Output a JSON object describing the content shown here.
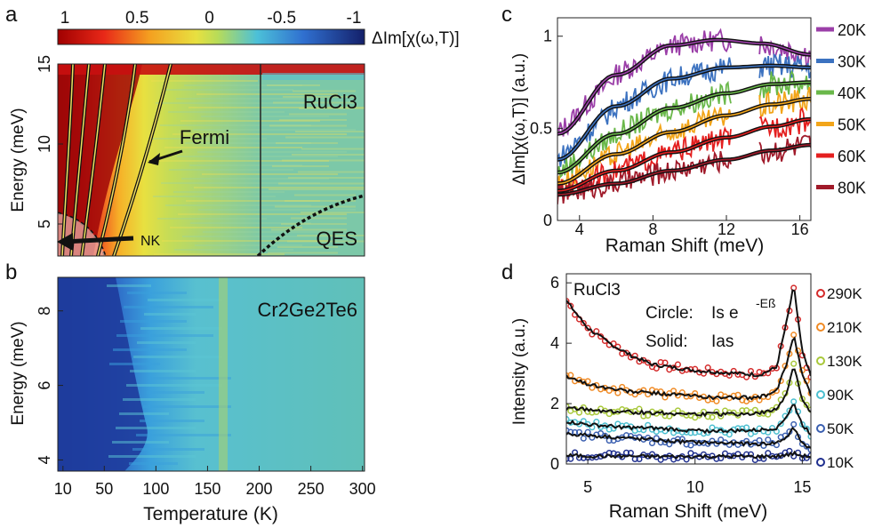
{
  "chart_data": [
    {
      "panel": "a",
      "type": "heatmap",
      "sample": "RuCl3",
      "xlabel": "",
      "ylabel": "Energy (meV)",
      "xlim": [
        5,
        302
      ],
      "ylim": [
        3,
        15
      ],
      "y_ticks": [
        5,
        10,
        15
      ],
      "colorbar": {
        "label": "ΔIm[χ(ω,T)]",
        "ticks": [
          "1",
          "0.5",
          "0",
          "-0.5",
          "-1"
        ],
        "range": [
          1,
          -1
        ]
      },
      "annotations": [
        "Fermi",
        "NK",
        "QES"
      ],
      "colors": {
        "positive": "#b40000",
        "zero": "#c8e04a",
        "negative": "#1e2f8c"
      }
    },
    {
      "panel": "b",
      "type": "heatmap",
      "sample": "Cr2Ge2Te6",
      "xlabel": "Temperature (K)",
      "ylabel": "Energy (meV)",
      "x_ticks": [
        10,
        50,
        100,
        150,
        200,
        250,
        300
      ],
      "xlim": [
        5,
        302
      ],
      "y_ticks": [
        4,
        6,
        8
      ],
      "ylim": [
        3.7,
        8.9
      ]
    },
    {
      "panel": "c",
      "type": "line",
      "xlabel": "Raman Shift (meV)",
      "ylabel": "ΔIm[χ(ω,T)] (a.u.)",
      "x_ticks": [
        4,
        8,
        12,
        16
      ],
      "y_ticks": [
        0,
        0.5,
        1
      ],
      "xlim": [
        2.8,
        16.6
      ],
      "ylim": [
        0,
        1.1
      ],
      "series": [
        {
          "name": "20K",
          "color": "#9b3fa8",
          "fit": {
            "x": [
              2.8,
              6,
              9,
              11.5,
              14,
              16.6
            ],
            "y": [
              0.47,
              0.79,
              0.95,
              0.98,
              0.96,
              0.9
            ]
          }
        },
        {
          "name": "30K",
          "color": "#3c72c0",
          "fit": {
            "x": [
              2.8,
              6,
              9,
              12,
              14.5,
              16.6
            ],
            "y": [
              0.33,
              0.62,
              0.77,
              0.83,
              0.84,
              0.83
            ]
          }
        },
        {
          "name": "40K",
          "color": "#6ab84a",
          "fit": {
            "x": [
              2.8,
              6,
              9,
              12,
              14.5,
              16.6
            ],
            "y": [
              0.26,
              0.47,
              0.61,
              0.69,
              0.74,
              0.75
            ]
          }
        },
        {
          "name": "50K",
          "color": "#f2a51a",
          "fit": {
            "x": [
              2.8,
              6,
              9,
              12,
              14.5,
              16.6
            ],
            "y": [
              0.2,
              0.36,
              0.48,
              0.57,
              0.63,
              0.66
            ]
          }
        },
        {
          "name": "60K",
          "color": "#e41f1f",
          "fit": {
            "x": [
              2.8,
              6,
              9,
              12,
              14.5,
              16.6
            ],
            "y": [
              0.16,
              0.27,
              0.37,
              0.45,
              0.51,
              0.55
            ]
          }
        },
        {
          "name": "80K",
          "color": "#a01a2a",
          "fit": {
            "x": [
              2.8,
              6,
              9,
              12,
              14.5,
              16.6
            ],
            "y": [
              0.14,
              0.2,
              0.27,
              0.33,
              0.38,
              0.41
            ]
          }
        }
      ]
    },
    {
      "panel": "d",
      "type": "scatter",
      "xlabel": "Raman Shift (meV)",
      "ylabel": "Intensity (a.u.)",
      "x_ticks": [
        5,
        10,
        15
      ],
      "y_ticks": [
        0,
        2,
        4,
        6
      ],
      "xlim": [
        4,
        15.4
      ],
      "ylim": [
        0,
        6.3
      ],
      "sample": "RuCl3",
      "legend_lines": [
        {
          "label": "Circle:",
          "expr": "Is e",
          "sup": "-Eß"
        },
        {
          "label": "Solid:",
          "expr": "Ias",
          "sup": ""
        }
      ],
      "series": [
        {
          "name": "290K",
          "color": "#d42a2a",
          "x": [
            4,
            5,
            6,
            7,
            8,
            9,
            10,
            11,
            12,
            13,
            13.8,
            14.3,
            14.6,
            15,
            15.4
          ],
          "y": [
            5.4,
            4.5,
            4.0,
            3.6,
            3.3,
            3.2,
            3.1,
            3.05,
            3.0,
            2.95,
            3.2,
            4.8,
            5.9,
            3.7,
            2.9
          ]
        },
        {
          "name": "210K",
          "color": "#f08a24",
          "x": [
            4,
            5,
            6,
            7,
            8,
            9,
            10,
            11,
            12,
            13,
            13.8,
            14.3,
            14.6,
            15,
            15.4
          ],
          "y": [
            2.9,
            2.65,
            2.5,
            2.4,
            2.35,
            2.3,
            2.25,
            2.2,
            2.2,
            2.2,
            2.4,
            3.4,
            4.3,
            3.0,
            2.3
          ]
        },
        {
          "name": "130K",
          "color": "#a8c83a",
          "x": [
            4,
            5,
            6,
            7,
            8,
            9,
            10,
            11,
            12,
            13,
            13.8,
            14.3,
            14.6,
            15,
            15.4
          ],
          "y": [
            1.85,
            1.8,
            1.75,
            1.72,
            1.7,
            1.68,
            1.65,
            1.65,
            1.65,
            1.68,
            1.8,
            2.4,
            3.3,
            2.1,
            1.7
          ]
        },
        {
          "name": "90K",
          "color": "#4bbfd0",
          "x": [
            4,
            5,
            6,
            7,
            8,
            9,
            10,
            11,
            12,
            13,
            13.8,
            14.3,
            14.6,
            15,
            15.4
          ],
          "y": [
            1.4,
            1.3,
            1.25,
            1.2,
            1.18,
            1.15,
            1.1,
            1.1,
            1.1,
            1.12,
            1.2,
            1.6,
            2.0,
            1.3,
            1.0
          ]
        },
        {
          "name": "50K",
          "color": "#3a5fb0",
          "x": [
            4,
            5,
            6,
            7,
            8,
            9,
            10,
            11,
            12,
            13,
            13.8,
            14.3,
            14.6,
            15,
            15.4
          ],
          "y": [
            1.0,
            0.95,
            0.9,
            0.85,
            0.8,
            0.75,
            0.72,
            0.7,
            0.68,
            0.66,
            0.7,
            0.9,
            1.2,
            0.7,
            0.5
          ]
        },
        {
          "name": "10K",
          "color": "#1f2f8f",
          "x": [
            4,
            5,
            6,
            7,
            8,
            9,
            10,
            11,
            12,
            13,
            13.8,
            14.3,
            14.6,
            15,
            15.4
          ],
          "y": [
            0.28,
            0.27,
            0.26,
            0.26,
            0.25,
            0.25,
            0.25,
            0.25,
            0.25,
            0.25,
            0.26,
            0.3,
            0.35,
            0.27,
            0.25
          ]
        }
      ]
    }
  ],
  "panel_labels": [
    "a",
    "b",
    "c",
    "d"
  ]
}
